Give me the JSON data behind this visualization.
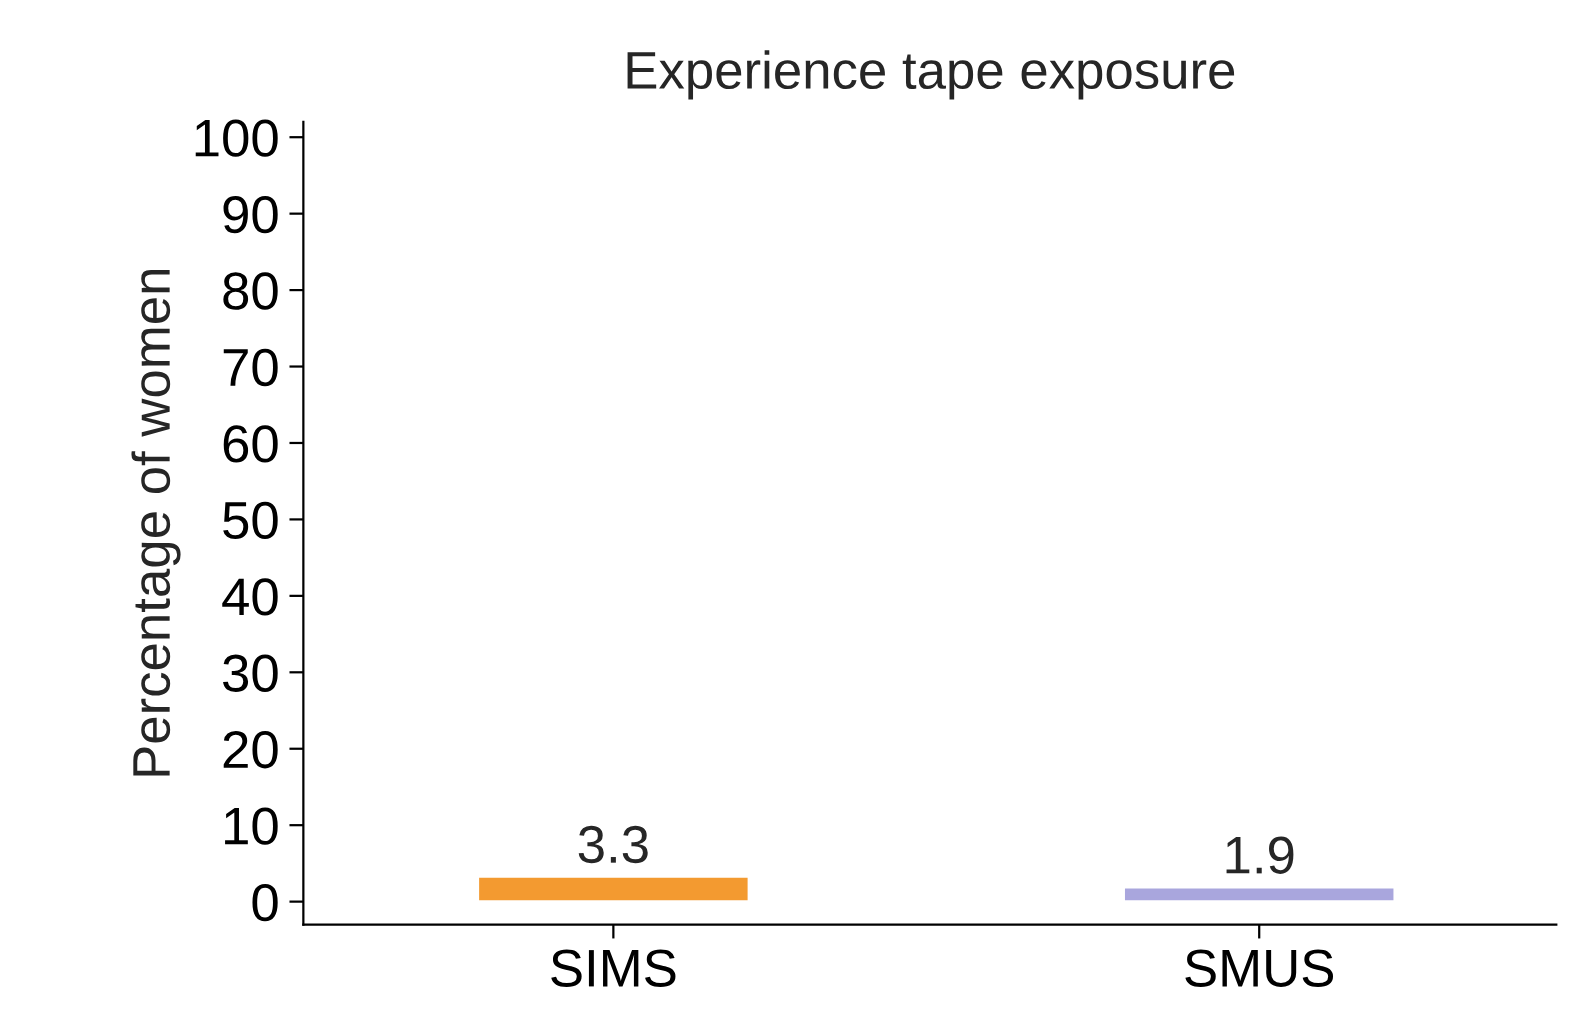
{
  "chart_data": {
    "type": "bar",
    "title": "Experience tape exposure",
    "ylabel": "Percentage of women",
    "categories": [
      "SIMS",
      "SMUS"
    ],
    "values": [
      3.3,
      1.9
    ],
    "colors": [
      "#f39a30",
      "#a9a6dd"
    ],
    "ylim": [
      -3,
      102
    ],
    "yticks": [
      0,
      10,
      20,
      30,
      40,
      50,
      60,
      70,
      80,
      90,
      100
    ],
    "data_labels": true,
    "grid": false,
    "legend": false
  }
}
